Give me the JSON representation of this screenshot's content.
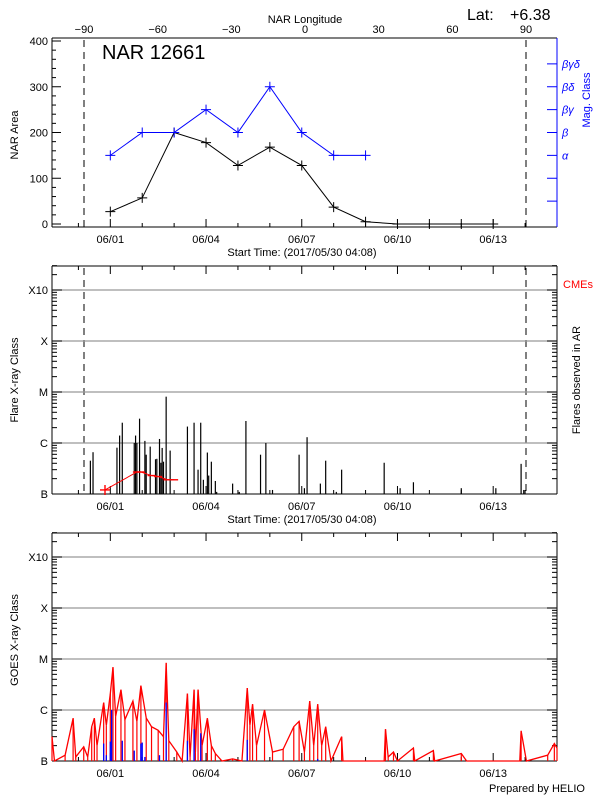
{
  "header": {
    "lat_label": "Lat:",
    "lat_value": "+6.38",
    "credit": "Prepared by HELIO"
  },
  "colors": {
    "area": "#000000",
    "mag_class": "#0000ff",
    "cme": "#ff0000",
    "goes_long": "#ff0000",
    "goes_short": "#0000ff",
    "grid": "#999999"
  },
  "chart_data": [
    {
      "type": "line",
      "title": "NAR 12661",
      "xlabel": "Start Time: (2017/05/30 04:08)",
      "x2label": "NAR Longitude",
      "ylabel": "NAR Area",
      "y2label": "Mag. Class",
      "xlim": [
        "05/30 04:08",
        "06/15 00:00"
      ],
      "xticks": [
        "06/01",
        "06/04",
        "06/07",
        "06/10",
        "06/13"
      ],
      "x2ticks": [
        "-90",
        "-60",
        "-30",
        "0",
        "30",
        "60",
        "90"
      ],
      "limb_longitudes": [
        -90,
        90
      ],
      "ylim": [
        -7,
        407
      ],
      "yticks": [
        "0",
        "100",
        "200",
        "300",
        "400"
      ],
      "y2ticks": [
        "α",
        "β",
        "βγ",
        "βδ",
        "βγδ"
      ],
      "area": {
        "x": [
          "06/01",
          "06/02",
          "06/03",
          "06/04",
          "06/05",
          "06/06",
          "06/07",
          "06/08",
          "06/09",
          "06/10",
          "06/11",
          "06/12",
          "06/13"
        ],
        "y": [
          27,
          57,
          200,
          178,
          128,
          168,
          128,
          37,
          5,
          0,
          0,
          0,
          0
        ]
      },
      "mag_class": {
        "x": [
          "06/01",
          "06/02",
          "06/03",
          "06/04",
          "06/05",
          "06/06",
          "06/07",
          "06/08",
          "06/09"
        ],
        "y": [
          "α",
          "β",
          "β",
          "βγ",
          "β",
          "βδ",
          "β",
          "α",
          "α"
        ]
      }
    },
    {
      "type": "bar",
      "xlabel": "Start Time: (2017/05/30 04:08)",
      "ylabel": "Flare X-ray Class",
      "y2label": "Flares observed in AR",
      "cme_label": "CMEs",
      "xticks": [
        "06/01",
        "06/04",
        "06/07",
        "06/10",
        "06/13"
      ],
      "yticks": [
        "B",
        "C",
        "M",
        "X",
        "X10"
      ],
      "ylim": [
        1e-07,
        0.003
      ],
      "flares": [
        {
          "t": "05/31 09:00",
          "c": "B4.5"
        },
        {
          "t": "05/31 11:00",
          "c": "B6.6"
        },
        {
          "t": "06/01 05:00",
          "c": "B8.1"
        },
        {
          "t": "06/01 07:00",
          "c": "C1.4"
        },
        {
          "t": "06/01 09:00",
          "c": "C2.5"
        },
        {
          "t": "06/01 18:00",
          "c": "C1.0"
        },
        {
          "t": "06/01 19:00",
          "c": "C1.4"
        },
        {
          "t": "06/01 20:00",
          "c": "C1.0"
        },
        {
          "t": "06/01 22:00",
          "c": "C3.0"
        },
        {
          "t": "06/02 02:00",
          "c": "C1.1"
        },
        {
          "t": "06/02 03:00",
          "c": "B5.9"
        },
        {
          "t": "06/02 06:00",
          "c": "B8.5"
        },
        {
          "t": "06/02 10:00",
          "c": "B4.8"
        },
        {
          "t": "06/02 11:00",
          "c": "B4.9"
        },
        {
          "t": "06/02 13:00",
          "c": "C1.2"
        },
        {
          "t": "06/02 14:00",
          "c": "B4.1"
        },
        {
          "t": "06/02 15:00",
          "c": "B8.0"
        },
        {
          "t": "06/02 16:00",
          "c": "B4.3"
        },
        {
          "t": "06/02 18:00",
          "c": "C8.1"
        },
        {
          "t": "06/02 21:00",
          "c": "B7.1"
        },
        {
          "t": "06/03 10:00",
          "c": "C2.1"
        },
        {
          "t": "06/03 15:00",
          "c": "C2.5"
        },
        {
          "t": "06/03 18:00",
          "c": "B3.0"
        },
        {
          "t": "06/03 20:00",
          "c": "C2.5"
        },
        {
          "t": "06/03 22:00",
          "c": "B1.9"
        },
        {
          "t": "06/04 01:00",
          "c": "B6.5"
        },
        {
          "t": "06/04 02:00",
          "c": "B2.3"
        },
        {
          "t": "06/04 04:00",
          "c": "B4.3"
        },
        {
          "t": "06/04 07:00",
          "c": "B1.8"
        },
        {
          "t": "06/04 08:00",
          "c": "B1.1"
        },
        {
          "t": "06/04 20:00",
          "c": "B1.6"
        },
        {
          "t": "06/05 01:00",
          "c": "B1.1"
        },
        {
          "t": "06/05 06:00",
          "c": "C2.7"
        },
        {
          "t": "06/05 17:00",
          "c": "B5.9"
        },
        {
          "t": "06/05 21:00",
          "c": "C1.0"
        },
        {
          "t": "06/06 02:00",
          "c": "B1.2"
        },
        {
          "t": "06/06 22:00",
          "c": "B5.9"
        },
        {
          "t": "06/07 02:00",
          "c": "B1.3"
        },
        {
          "t": "06/07 04:00",
          "c": "C1.3"
        },
        {
          "t": "06/07 14:00",
          "c": "B1.6"
        },
        {
          "t": "06/07 18:00",
          "c": "B4.5"
        },
        {
          "t": "06/08 02:00",
          "c": "B1.1"
        },
        {
          "t": "06/08 06:00",
          "c": "B3.0"
        },
        {
          "t": "06/09 14:00",
          "c": "B4.1"
        },
        {
          "t": "06/10 02:00",
          "c": "B1.3"
        },
        {
          "t": "06/10 12:00",
          "c": "B1.7"
        },
        {
          "t": "06/12 00:00",
          "c": "B1.3"
        },
        {
          "t": "06/13 02:00",
          "c": "B1.3"
        },
        {
          "t": "06/13 21:00",
          "c": "B3.9"
        },
        {
          "t": "06/13 23:00",
          "c": "B1.2"
        }
      ],
      "cmes": [
        {
          "t": "05/31 20:00",
          "c": "B1.2"
        },
        {
          "t": "06/01 20:00",
          "c": "B2.7"
        },
        {
          "t": "06/01 23:00",
          "c": "B2.7"
        },
        {
          "t": "06/02 07:00",
          "c": "B2.3"
        },
        {
          "t": "06/02 12:00",
          "c": "B2.2"
        },
        {
          "t": "06/02 19:00",
          "c": "B1.9"
        },
        {
          "t": "06/03 00:00",
          "c": "B1.9"
        }
      ]
    },
    {
      "type": "line",
      "ylabel": "GOES X-ray Class",
      "xticks": [
        "06/01",
        "06/04",
        "06/07",
        "06/10",
        "06/13"
      ],
      "yticks": [
        "B",
        "C",
        "M",
        "X",
        "X10"
      ],
      "ylim": [
        1e-07,
        0.003
      ],
      "goes_long": [
        {
          "t": "05/30 04:08",
          "c": "B3.0"
        },
        {
          "t": "05/30 06:00",
          "c": "B1.0"
        },
        {
          "t": "05/30 14:00",
          "c": "B1.3"
        },
        {
          "t": "05/30 20:00",
          "c": "B6.9"
        },
        {
          "t": "05/30 22:00",
          "c": "B1.2"
        },
        {
          "t": "05/31 04:00",
          "c": "B1.9"
        },
        {
          "t": "05/31 07:00",
          "c": "B1.2"
        },
        {
          "t": "05/31 10:00",
          "c": "B4.7"
        },
        {
          "t": "05/31 12:00",
          "c": "B6.9"
        },
        {
          "t": "05/31 14:00",
          "c": "B2.0"
        },
        {
          "t": "05/31 19:00",
          "c": "C1.4"
        },
        {
          "t": "05/31 21:00",
          "c": "B5.0"
        },
        {
          "t": "06/01 00:00",
          "c": "C2.1"
        },
        {
          "t": "06/01 02:00",
          "c": "C6.9"
        },
        {
          "t": "06/01 04:00",
          "c": "B7.5"
        },
        {
          "t": "06/01 08:00",
          "c": "C2.5"
        },
        {
          "t": "06/01 11:00",
          "c": "B6.5"
        },
        {
          "t": "06/01 17:00",
          "c": "C1.5"
        },
        {
          "t": "06/01 20:00",
          "c": "B6.0"
        },
        {
          "t": "06/01 23:00",
          "c": "C3.0"
        },
        {
          "t": "06/02 03:00",
          "c": "B7.0"
        },
        {
          "t": "06/02 07:00",
          "c": "B4.7"
        },
        {
          "t": "06/02 12:00",
          "c": "B4.0"
        },
        {
          "t": "06/02 16:00",
          "c": "B3.0"
        },
        {
          "t": "06/02 18:00",
          "c": "C8.4"
        },
        {
          "t": "06/02 20:00",
          "c": "B2.5"
        },
        {
          "t": "06/03 02:00",
          "c": "B1.5"
        },
        {
          "t": "06/03 06:00",
          "c": "B1.0"
        },
        {
          "t": "06/03 10:00",
          "c": "C2.1"
        },
        {
          "t": "06/03 12:00",
          "c": "B1.2"
        },
        {
          "t": "06/03 15:00",
          "c": "C2.5"
        },
        {
          "t": "06/03 16:00",
          "c": "B1.5"
        },
        {
          "t": "06/03 18:00",
          "c": "C2.5"
        },
        {
          "t": "06/03 21:00",
          "c": "B2.0"
        },
        {
          "t": "06/04 01:00",
          "c": "B6.9"
        },
        {
          "t": "06/04 04:00",
          "c": "B2.0"
        },
        {
          "t": "06/04 07:00",
          "c": "B1.4"
        },
        {
          "t": "06/04 12:00",
          "c": "B1.0"
        },
        {
          "t": "06/04 20:00",
          "c": "B1.1"
        },
        {
          "t": "06/05 03:00",
          "c": "B1.0"
        },
        {
          "t": "06/05 07:00",
          "c": "C2.7"
        },
        {
          "t": "06/05 09:00",
          "c": "B5.0"
        },
        {
          "t": "06/05 11:00",
          "c": "C1.3"
        },
        {
          "t": "06/05 14:00",
          "c": "B2.0"
        },
        {
          "t": "06/05 20:00",
          "c": "C1.0"
        },
        {
          "t": "06/06 02:00",
          "c": "B1.5"
        },
        {
          "t": "06/06 10:00",
          "c": "B1.7"
        },
        {
          "t": "06/06 18:00",
          "c": "B4.7"
        },
        {
          "t": "06/06 22:00",
          "c": "B6.0"
        },
        {
          "t": "06/07 02:00",
          "c": "B1.5"
        },
        {
          "t": "06/07 06:00",
          "c": "C1.5"
        },
        {
          "t": "06/07 09:00",
          "c": "B2.0"
        },
        {
          "t": "06/07 12:00",
          "c": "C1.3"
        },
        {
          "t": "06/07 15:00",
          "c": "B2.0"
        },
        {
          "t": "06/07 18:00",
          "c": "B4.7"
        },
        {
          "t": "06/07 22:00",
          "c": "B1.0"
        },
        {
          "t": "06/08 06:00",
          "c": "B3.0"
        },
        {
          "t": "06/08 07:00",
          "c": "B1.0"
        },
        {
          "t": "06/09 14:00",
          "c": "B1.0"
        },
        {
          "t": "06/09 15:00",
          "c": "B4.2"
        },
        {
          "t": "06/09 17:00",
          "c": "B1.2"
        },
        {
          "t": "06/09 21:00",
          "c": "B1.5"
        },
        {
          "t": "06/10 00:00",
          "c": "B1.0"
        },
        {
          "t": "06/10 12:00",
          "c": "B1.8"
        },
        {
          "t": "06/10 13:00",
          "c": "B1.0"
        },
        {
          "t": "06/11 03:00",
          "c": "B1.6"
        },
        {
          "t": "06/11 04:00",
          "c": "B1.0"
        },
        {
          "t": "06/12 00:00",
          "c": "B1.4"
        },
        {
          "t": "06/12 04:00",
          "c": "B1.0"
        },
        {
          "t": "06/13 20:00",
          "c": "B1.0"
        },
        {
          "t": "06/13 21:00",
          "c": "B3.9"
        },
        {
          "t": "06/14 01:00",
          "c": "B1.0"
        },
        {
          "t": "06/14 17:00",
          "c": "B1.3"
        },
        {
          "t": "06/14 22:00",
          "c": "B2.2"
        },
        {
          "t": "06/15 00:00",
          "c": "B1.8"
        }
      ],
      "goes_short": [
        {
          "t": "05/31 19:00",
          "c": "B2.2"
        },
        {
          "t": "05/31 21:00",
          "c": "B1.3"
        },
        {
          "t": "06/01 00:00",
          "c": "B2.4"
        },
        {
          "t": "06/01 01:00",
          "c": "C1.0"
        },
        {
          "t": "06/01 09:00",
          "c": "B2.5"
        },
        {
          "t": "06/01 18:00",
          "c": "B1.6"
        },
        {
          "t": "06/01 23:00",
          "c": "B2.2"
        },
        {
          "t": "06/02 00:00",
          "c": "B2.3"
        },
        {
          "t": "06/02 02:00",
          "c": "B1.2"
        },
        {
          "t": "06/02 13:00",
          "c": "B1.3"
        },
        {
          "t": "06/02 18:00",
          "c": "C1.4"
        },
        {
          "t": "06/03 10:00",
          "c": "B2.5"
        },
        {
          "t": "06/03 15:00",
          "c": "B4.2"
        },
        {
          "t": "06/03 20:00",
          "c": "B3.5"
        },
        {
          "t": "06/05 07:00",
          "c": "B2.6"
        },
        {
          "t": "06/07 12:00",
          "c": "B1.1"
        }
      ]
    }
  ]
}
